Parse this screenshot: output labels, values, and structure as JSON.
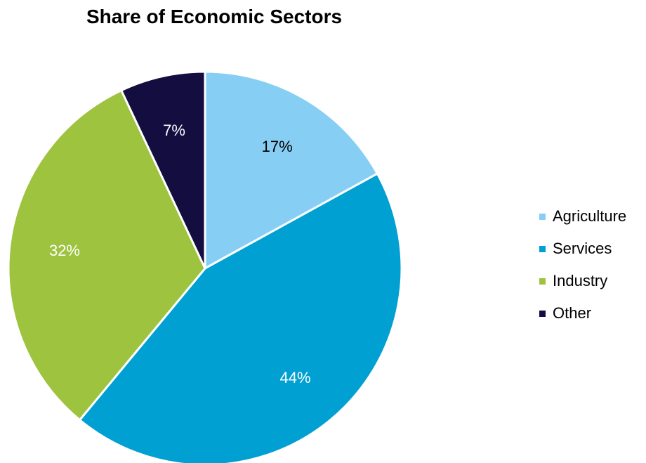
{
  "chart_data": {
    "type": "pie",
    "title": "Share of Economic Sectors",
    "slices": [
      {
        "name": "Agriculture",
        "value": 17,
        "label": "17%",
        "color": "#87CEF5",
        "label_color": "#000000"
      },
      {
        "name": "Services",
        "value": 44,
        "label": "44%",
        "color": "#00A0D2",
        "label_color": "#ffffff"
      },
      {
        "name": "Industry",
        "value": 32,
        "label": "32%",
        "color": "#9DC33F",
        "label_color": "#ffffff"
      },
      {
        "name": "Other",
        "value": 7,
        "label": "7%",
        "color": "#140D3F",
        "label_color": "#ffffff"
      }
    ],
    "legend": {
      "position": "right"
    }
  }
}
